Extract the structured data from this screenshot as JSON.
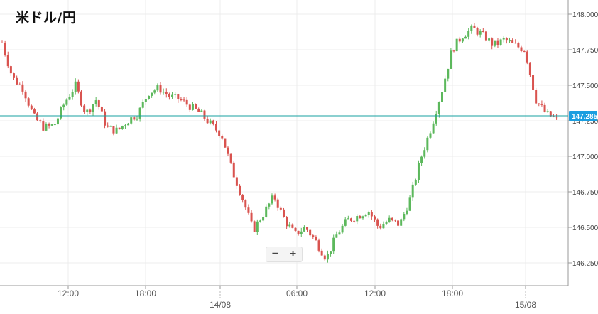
{
  "chart_data": {
    "type": "candlestick",
    "title": "米ドル/円",
    "current_price": {
      "value": 147.285,
      "label": "147.285"
    },
    "y_ticks": [
      {
        "value": 148.0,
        "label": "148.000"
      },
      {
        "value": 147.75,
        "label": "147.750"
      },
      {
        "value": 147.5,
        "label": "147.500"
      },
      {
        "value": 147.25,
        "label": "147.250"
      },
      {
        "value": 147.0,
        "label": "147.000"
      },
      {
        "value": 146.75,
        "label": "146.750"
      },
      {
        "value": 146.5,
        "label": "146.500"
      },
      {
        "value": 146.25,
        "label": "146.250"
      }
    ],
    "x_ticks": [
      "12:00",
      "18:00",
      "14/08",
      "06:00",
      "12:00",
      "18:00",
      "15/08"
    ],
    "up_color": "#5cb85c",
    "down_color": "#d9534f",
    "price_line_color": "#17a2a2",
    "grid": true,
    "waypoints": [
      147.8,
      147.55,
      147.48,
      147.28,
      147.2,
      147.22,
      147.38,
      147.5,
      147.3,
      147.4,
      147.2,
      147.18,
      147.25,
      147.3,
      147.45,
      147.48,
      147.42,
      147.4,
      147.35,
      147.3,
      147.22,
      147.15,
      146.9,
      146.7,
      146.48,
      146.6,
      146.72,
      146.55,
      146.45,
      146.5,
      146.4,
      146.28,
      146.45,
      146.55,
      146.58,
      146.62,
      146.5,
      146.55,
      146.52,
      146.7,
      146.98,
      147.2,
      147.45,
      147.75,
      147.85,
      147.9,
      147.85,
      147.78,
      147.82,
      147.78,
      147.75,
      147.4,
      147.3,
      147.26
    ]
  },
  "ui": {
    "zoom_out": "−",
    "zoom_in": "+"
  }
}
